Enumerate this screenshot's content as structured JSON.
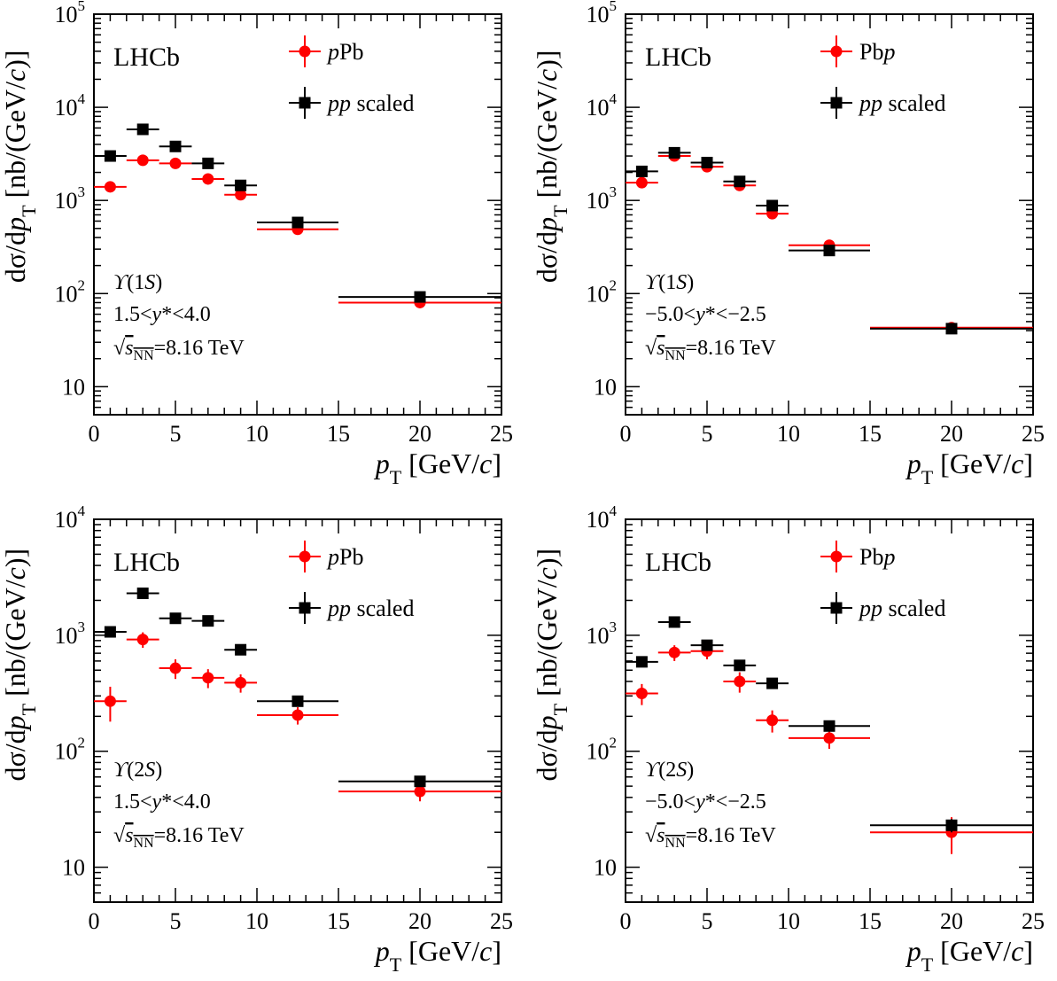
{
  "colors": {
    "pPb": "#ff0000",
    "pp": "#000000",
    "frame": "#000000"
  },
  "chart_data": [
    {
      "type": "scatter",
      "panel": "top-left",
      "experiment_label": "LHCb",
      "state_label": "ϒ(1S)",
      "rapidity_label": "1.5<y*<4.0",
      "energy_label": "√sNN=8.16 TeV",
      "xlabel": "pT [GeV/c]",
      "ylabel": "dσ/dpT [nb/(GeV/c)]",
      "x_scale": "linear",
      "xlim": [
        0,
        25
      ],
      "y_scale": "log",
      "ylim": [
        5,
        100000
      ],
      "xticks": [
        0,
        5,
        10,
        15,
        20,
        25
      ],
      "yticks": [
        10,
        100,
        1000,
        10000,
        100000
      ],
      "ytick_labels": [
        {
          "base": "10",
          "exp": ""
        },
        {
          "base": "10",
          "exp": "2"
        },
        {
          "base": "10",
          "exp": "3"
        },
        {
          "base": "10",
          "exp": "4"
        },
        {
          "base": "10",
          "exp": "5"
        }
      ],
      "legend": "top, right of experiment label",
      "series": [
        {
          "name": "pPb",
          "color": "#ff0000",
          "marker": "circle",
          "points": [
            {
              "x": 1,
              "xlo": 0,
              "xhi": 2,
              "y": 1400,
              "ylo": 1250,
              "yhi": 1550
            },
            {
              "x": 3,
              "xlo": 2,
              "xhi": 4,
              "y": 2700,
              "ylo": 2450,
              "yhi": 2950
            },
            {
              "x": 5,
              "xlo": 4,
              "xhi": 6,
              "y": 2500,
              "ylo": 2250,
              "yhi": 2750
            },
            {
              "x": 7,
              "xlo": 6,
              "xhi": 8,
              "y": 1700,
              "ylo": 1530,
              "yhi": 1880
            },
            {
              "x": 9,
              "xlo": 8,
              "xhi": 10,
              "y": 1150,
              "ylo": 1040,
              "yhi": 1270
            },
            {
              "x": 12.5,
              "xlo": 10,
              "xhi": 15,
              "y": 490,
              "ylo": 445,
              "yhi": 540
            },
            {
              "x": 20,
              "xlo": 15,
              "xhi": 25,
              "y": 80,
              "ylo": 72,
              "yhi": 88
            }
          ]
        },
        {
          "name": "pp scaled",
          "color": "#000000",
          "marker": "square",
          "points": [
            {
              "x": 1,
              "xlo": 0,
              "xhi": 2,
              "y": 3000,
              "ylo": 2800,
              "yhi": 3200
            },
            {
              "x": 3,
              "xlo": 2,
              "xhi": 4,
              "y": 5800,
              "ylo": 5400,
              "yhi": 6200
            },
            {
              "x": 5,
              "xlo": 4,
              "xhi": 6,
              "y": 3800,
              "ylo": 3550,
              "yhi": 4050
            },
            {
              "x": 7,
              "xlo": 6,
              "xhi": 8,
              "y": 2500,
              "ylo": 2330,
              "yhi": 2670
            },
            {
              "x": 9,
              "xlo": 8,
              "xhi": 10,
              "y": 1450,
              "ylo": 1350,
              "yhi": 1550
            },
            {
              "x": 12.5,
              "xlo": 10,
              "xhi": 15,
              "y": 580,
              "ylo": 540,
              "yhi": 620
            },
            {
              "x": 20,
              "xlo": 15,
              "xhi": 25,
              "y": 92,
              "ylo": 85,
              "yhi": 99
            }
          ]
        }
      ]
    },
    {
      "type": "scatter",
      "panel": "top-right",
      "experiment_label": "LHCb",
      "state_label": "ϒ(1S)",
      "rapidity_label": "−5.0<y*<−2.5",
      "energy_label": "√sNN=8.16 TeV",
      "xlabel": "pT [GeV/c]",
      "ylabel": "dσ/dpT [nb/(GeV/c)]",
      "x_scale": "linear",
      "xlim": [
        0,
        25
      ],
      "y_scale": "log",
      "ylim": [
        5,
        100000
      ],
      "xticks": [
        0,
        5,
        10,
        15,
        20,
        25
      ],
      "yticks": [
        10,
        100,
        1000,
        10000,
        100000
      ],
      "ytick_labels": [
        {
          "base": "10",
          "exp": ""
        },
        {
          "base": "10",
          "exp": "2"
        },
        {
          "base": "10",
          "exp": "3"
        },
        {
          "base": "10",
          "exp": "4"
        },
        {
          "base": "10",
          "exp": "5"
        }
      ],
      "legend": "top, right of experiment label",
      "series": [
        {
          "name": "Pbp",
          "color": "#ff0000",
          "marker": "circle",
          "points": [
            {
              "x": 1,
              "xlo": 0,
              "xhi": 2,
              "y": 1550,
              "ylo": 1400,
              "yhi": 1700
            },
            {
              "x": 3,
              "xlo": 2,
              "xhi": 4,
              "y": 3000,
              "ylo": 2750,
              "yhi": 3250
            },
            {
              "x": 5,
              "xlo": 4,
              "xhi": 6,
              "y": 2300,
              "ylo": 2100,
              "yhi": 2500
            },
            {
              "x": 7,
              "xlo": 6,
              "xhi": 8,
              "y": 1450,
              "ylo": 1320,
              "yhi": 1580
            },
            {
              "x": 9,
              "xlo": 8,
              "xhi": 10,
              "y": 720,
              "ylo": 650,
              "yhi": 790
            },
            {
              "x": 12.5,
              "xlo": 10,
              "xhi": 15,
              "y": 330,
              "ylo": 300,
              "yhi": 360
            },
            {
              "x": 20,
              "xlo": 15,
              "xhi": 25,
              "y": 43,
              "ylo": 37,
              "yhi": 49
            }
          ]
        },
        {
          "name": "pp scaled",
          "color": "#000000",
          "marker": "square",
          "points": [
            {
              "x": 1,
              "xlo": 0,
              "xhi": 2,
              "y": 2050,
              "ylo": 1900,
              "yhi": 2200
            },
            {
              "x": 3,
              "xlo": 2,
              "xhi": 4,
              "y": 3250,
              "ylo": 3050,
              "yhi": 3450
            },
            {
              "x": 5,
              "xlo": 4,
              "xhi": 6,
              "y": 2550,
              "ylo": 2380,
              "yhi": 2720
            },
            {
              "x": 7,
              "xlo": 6,
              "xhi": 8,
              "y": 1600,
              "ylo": 1490,
              "yhi": 1710
            },
            {
              "x": 9,
              "xlo": 8,
              "xhi": 10,
              "y": 880,
              "ylo": 820,
              "yhi": 940
            },
            {
              "x": 12.5,
              "xlo": 10,
              "xhi": 15,
              "y": 290,
              "ylo": 270,
              "yhi": 310
            },
            {
              "x": 20,
              "xlo": 15,
              "xhi": 25,
              "y": 42,
              "ylo": 38,
              "yhi": 46
            }
          ]
        }
      ]
    },
    {
      "type": "scatter",
      "panel": "bottom-left",
      "experiment_label": "LHCb",
      "state_label": "ϒ(2S)",
      "rapidity_label": "1.5<y*<4.0",
      "energy_label": "√sNN=8.16 TeV",
      "xlabel": "pT [GeV/c]",
      "ylabel": "dσ/dpT [nb/(GeV/c)]",
      "x_scale": "linear",
      "xlim": [
        0,
        25
      ],
      "y_scale": "log",
      "ylim": [
        5,
        10000
      ],
      "xticks": [
        0,
        5,
        10,
        15,
        20,
        25
      ],
      "yticks": [
        10,
        100,
        1000,
        10000
      ],
      "ytick_labels": [
        {
          "base": "10",
          "exp": ""
        },
        {
          "base": "10",
          "exp": "2"
        },
        {
          "base": "10",
          "exp": "3"
        },
        {
          "base": "10",
          "exp": "4"
        }
      ],
      "legend": "top, right of experiment label",
      "series": [
        {
          "name": "pPb",
          "color": "#ff0000",
          "marker": "circle",
          "points": [
            {
              "x": 1,
              "xlo": 0,
              "xhi": 2,
              "y": 270,
              "ylo": 180,
              "yhi": 360
            },
            {
              "x": 3,
              "xlo": 2,
              "xhi": 4,
              "y": 920,
              "ylo": 780,
              "yhi": 1060
            },
            {
              "x": 5,
              "xlo": 4,
              "xhi": 6,
              "y": 520,
              "ylo": 420,
              "yhi": 620
            },
            {
              "x": 7,
              "xlo": 6,
              "xhi": 8,
              "y": 430,
              "ylo": 350,
              "yhi": 510
            },
            {
              "x": 9,
              "xlo": 8,
              "xhi": 10,
              "y": 390,
              "ylo": 320,
              "yhi": 460
            },
            {
              "x": 12.5,
              "xlo": 10,
              "xhi": 15,
              "y": 205,
              "ylo": 170,
              "yhi": 240
            },
            {
              "x": 20,
              "xlo": 15,
              "xhi": 25,
              "y": 45,
              "ylo": 37,
              "yhi": 53
            }
          ]
        },
        {
          "name": "pp scaled",
          "color": "#000000",
          "marker": "square",
          "points": [
            {
              "x": 1,
              "xlo": 0,
              "xhi": 2,
              "y": 1070,
              "ylo": 1000,
              "yhi": 1140
            },
            {
              "x": 3,
              "xlo": 2,
              "xhi": 4,
              "y": 2300,
              "ylo": 2150,
              "yhi": 2450
            },
            {
              "x": 5,
              "xlo": 4,
              "xhi": 6,
              "y": 1400,
              "ylo": 1300,
              "yhi": 1500
            },
            {
              "x": 7,
              "xlo": 6,
              "xhi": 8,
              "y": 1330,
              "ylo": 1240,
              "yhi": 1420
            },
            {
              "x": 9,
              "xlo": 8,
              "xhi": 10,
              "y": 750,
              "ylo": 700,
              "yhi": 800
            },
            {
              "x": 12.5,
              "xlo": 10,
              "xhi": 15,
              "y": 270,
              "ylo": 250,
              "yhi": 290
            },
            {
              "x": 20,
              "xlo": 15,
              "xhi": 25,
              "y": 55,
              "ylo": 51,
              "yhi": 59
            }
          ]
        }
      ]
    },
    {
      "type": "scatter",
      "panel": "bottom-right",
      "experiment_label": "LHCb",
      "state_label": "ϒ(2S)",
      "rapidity_label": "−5.0<y*<−2.5",
      "energy_label": "√sNN=8.16 TeV",
      "xlabel": "pT [GeV/c]",
      "ylabel": "dσ/dpT [nb/(GeV/c)]",
      "x_scale": "linear",
      "xlim": [
        0,
        25
      ],
      "y_scale": "log",
      "ylim": [
        5,
        10000
      ],
      "xticks": [
        0,
        5,
        10,
        15,
        20,
        25
      ],
      "yticks": [
        10,
        100,
        1000,
        10000
      ],
      "ytick_labels": [
        {
          "base": "10",
          "exp": ""
        },
        {
          "base": "10",
          "exp": "2"
        },
        {
          "base": "10",
          "exp": "3"
        },
        {
          "base": "10",
          "exp": "4"
        }
      ],
      "legend": "top, right of experiment label",
      "series": [
        {
          "name": "Pbp",
          "color": "#ff0000",
          "marker": "circle",
          "points": [
            {
              "x": 1,
              "xlo": 0,
              "xhi": 2,
              "y": 315,
              "ylo": 250,
              "yhi": 380
            },
            {
              "x": 3,
              "xlo": 2,
              "xhi": 4,
              "y": 710,
              "ylo": 600,
              "yhi": 820
            },
            {
              "x": 5,
              "xlo": 4,
              "xhi": 6,
              "y": 730,
              "ylo": 620,
              "yhi": 840
            },
            {
              "x": 7,
              "xlo": 6,
              "xhi": 8,
              "y": 400,
              "ylo": 320,
              "yhi": 480
            },
            {
              "x": 9,
              "xlo": 8,
              "xhi": 10,
              "y": 185,
              "ylo": 145,
              "yhi": 225
            },
            {
              "x": 12.5,
              "xlo": 10,
              "xhi": 15,
              "y": 130,
              "ylo": 105,
              "yhi": 155
            },
            {
              "x": 20,
              "xlo": 15,
              "xhi": 25,
              "y": 20,
              "ylo": 13,
              "yhi": 27
            }
          ]
        },
        {
          "name": "pp scaled",
          "color": "#000000",
          "marker": "square",
          "points": [
            {
              "x": 1,
              "xlo": 0,
              "xhi": 2,
              "y": 590,
              "ylo": 550,
              "yhi": 630
            },
            {
              "x": 3,
              "xlo": 2,
              "xhi": 4,
              "y": 1300,
              "ylo": 1220,
              "yhi": 1380
            },
            {
              "x": 5,
              "xlo": 4,
              "xhi": 6,
              "y": 820,
              "ylo": 765,
              "yhi": 875
            },
            {
              "x": 7,
              "xlo": 6,
              "xhi": 8,
              "y": 550,
              "ylo": 515,
              "yhi": 585
            },
            {
              "x": 9,
              "xlo": 8,
              "xhi": 10,
              "y": 385,
              "ylo": 360,
              "yhi": 410
            },
            {
              "x": 12.5,
              "xlo": 10,
              "xhi": 15,
              "y": 165,
              "ylo": 155,
              "yhi": 175
            },
            {
              "x": 20,
              "xlo": 15,
              "xhi": 25,
              "y": 23,
              "ylo": 20,
              "yhi": 26
            }
          ]
        }
      ]
    }
  ]
}
